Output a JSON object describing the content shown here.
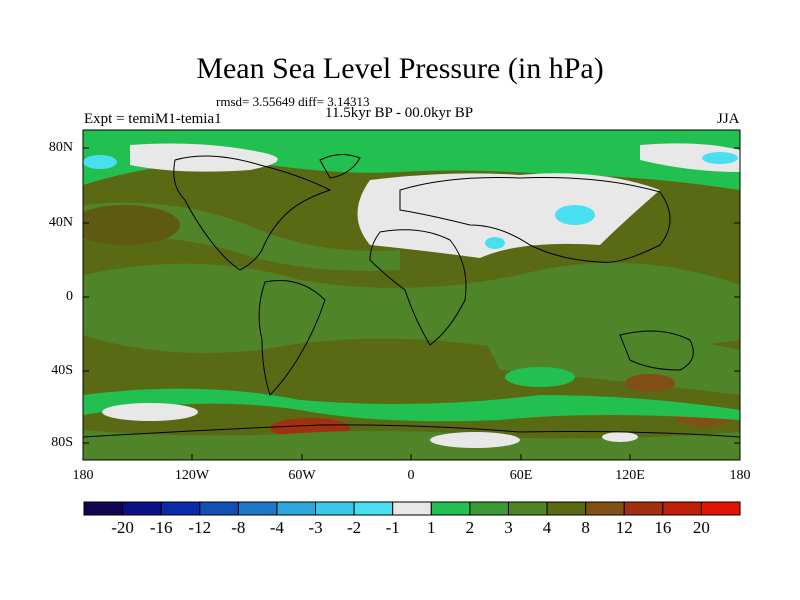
{
  "title": "Mean Sea Level Pressure (in hPa)",
  "stats": "rmsd= 3.55649 diff= 3.14313",
  "experiment": "Expt = temiM1-temia1",
  "period": "11.5kyr BP - 00.0kyr BP",
  "season": "JJA",
  "map": {
    "lat_ticks": [
      "80N",
      "40N",
      "0",
      "40S",
      "80S"
    ],
    "lon_ticks": [
      "180",
      "120W",
      "60W",
      "0",
      "60E",
      "120E",
      "180"
    ]
  },
  "colorbar": {
    "labels": [
      "-20",
      "-16",
      "-12",
      "-8",
      "-4",
      "-3",
      "-2",
      "-1",
      "1",
      "2",
      "3",
      "4",
      "8",
      "12",
      "16",
      "20"
    ],
    "colors": [
      "#140550",
      "#0b0f88",
      "#0a2aa8",
      "#1450b4",
      "#1e78c8",
      "#2ea8dc",
      "#3cc8e8",
      "#48e0f0",
      "#e8e8e8",
      "#22c050",
      "#3c9a36",
      "#4f8428",
      "#5a6a14",
      "#825016",
      "#a03010",
      "#c02008",
      "#e01400"
    ]
  }
}
